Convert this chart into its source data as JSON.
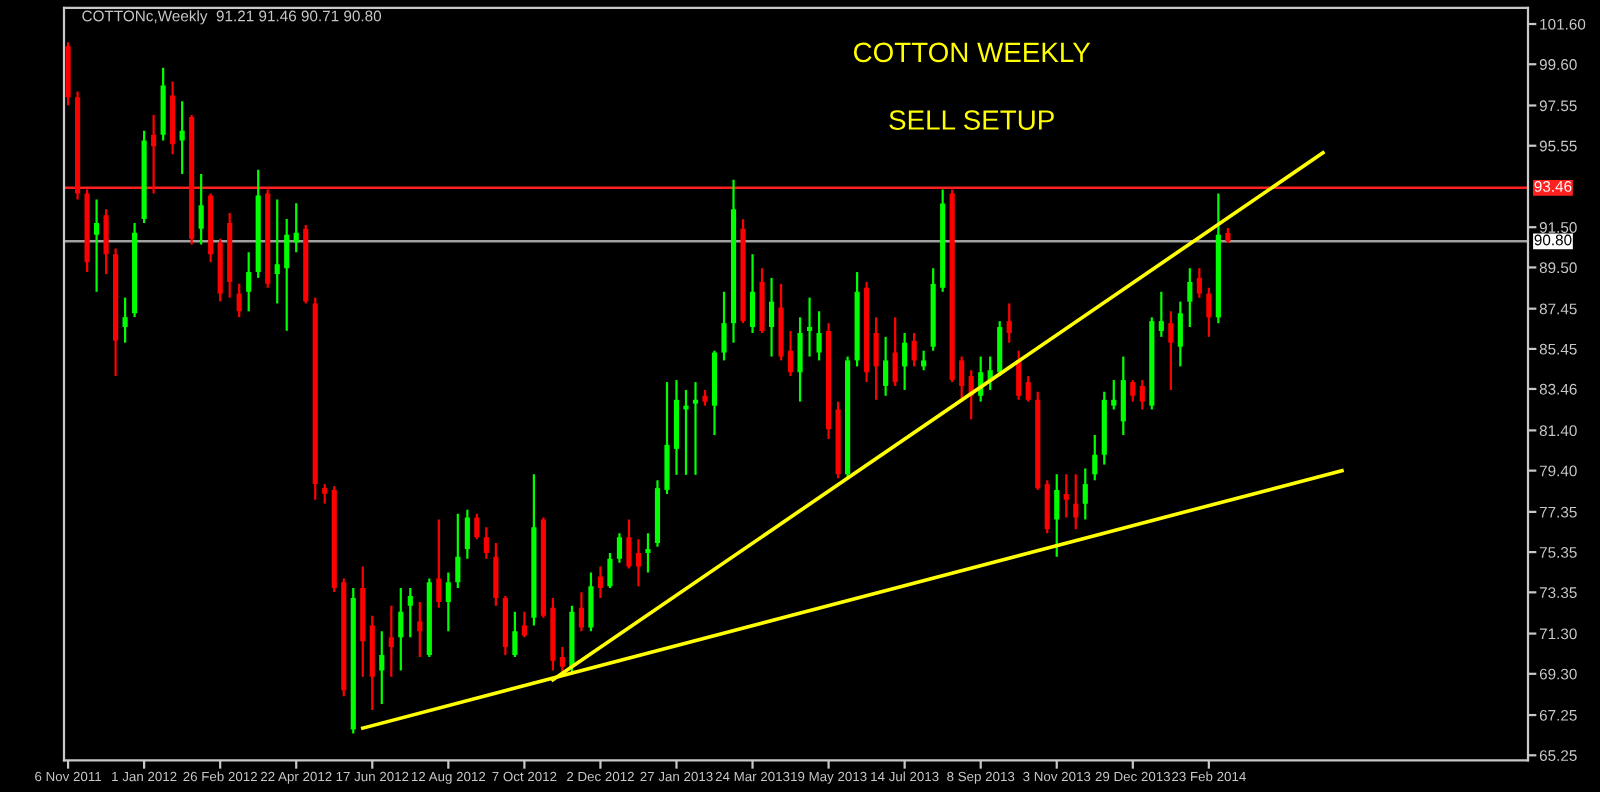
{
  "chart_data": {
    "type": "candlestick",
    "title": "COTTON WEEKLY",
    "subtitle": "SELL SETUP",
    "annotations": [
      "COTTONc,Weekly  91.21 91.46 90.71 90.80"
    ],
    "x": [
      "2011-11-06",
      "2011-11-13",
      "2011-11-20",
      "2011-11-27",
      "2011-12-04",
      "2011-12-11",
      "2011-12-18",
      "2011-12-25",
      "2012-01-01",
      "2012-01-08",
      "2012-01-15",
      "2012-01-22",
      "2012-01-29",
      "2012-02-05",
      "2012-02-12",
      "2012-02-19",
      "2012-02-26",
      "2012-03-04",
      "2012-03-11",
      "2012-03-18",
      "2012-03-25",
      "2012-04-01",
      "2012-04-08",
      "2012-04-15",
      "2012-04-22",
      "2012-04-29",
      "2012-05-06",
      "2012-05-13",
      "2012-05-20",
      "2012-05-27",
      "2012-06-03",
      "2012-06-10",
      "2012-06-17",
      "2012-06-24",
      "2012-07-01",
      "2012-07-08",
      "2012-07-15",
      "2012-07-22",
      "2012-07-29",
      "2012-08-05",
      "2012-08-12",
      "2012-08-19",
      "2012-08-26",
      "2012-09-02",
      "2012-09-09",
      "2012-09-16",
      "2012-09-23",
      "2012-09-30",
      "2012-10-07",
      "2012-10-14",
      "2012-10-21",
      "2012-10-28",
      "2012-11-04",
      "2012-11-11",
      "2012-11-18",
      "2012-11-25",
      "2012-12-02",
      "2012-12-09",
      "2012-12-16",
      "2012-12-23",
      "2012-12-30",
      "2013-01-06",
      "2013-01-13",
      "2013-01-20",
      "2013-01-27",
      "2013-02-03",
      "2013-02-10",
      "2013-02-17",
      "2013-02-24",
      "2013-03-03",
      "2013-03-10",
      "2013-03-17",
      "2013-03-24",
      "2013-03-31",
      "2013-04-07",
      "2013-04-14",
      "2013-04-21",
      "2013-04-28",
      "2013-05-05",
      "2013-05-12",
      "2013-05-19",
      "2013-05-26",
      "2013-06-02",
      "2013-06-09",
      "2013-06-16",
      "2013-06-23",
      "2013-06-30",
      "2013-07-07",
      "2013-07-14",
      "2013-07-21",
      "2013-07-28",
      "2013-08-04",
      "2013-08-11",
      "2013-08-18",
      "2013-08-25",
      "2013-09-01",
      "2013-09-08",
      "2013-09-15",
      "2013-09-22",
      "2013-09-29",
      "2013-10-06",
      "2013-10-13",
      "2013-10-20",
      "2013-10-27",
      "2013-11-03",
      "2013-11-10",
      "2013-11-17",
      "2013-11-24",
      "2013-12-01",
      "2013-12-08",
      "2013-12-15",
      "2013-12-22",
      "2013-12-29",
      "2014-01-05",
      "2014-01-12",
      "2014-01-19",
      "2014-01-26",
      "2014-02-02",
      "2014-02-09",
      "2014-02-16",
      "2014-02-23",
      "2014-03-02",
      "2014-03-09"
    ],
    "ohlc": [
      [
        100.49,
        100.69,
        97.56,
        97.96
      ],
      [
        97.96,
        98.25,
        92.88,
        93.17
      ],
      [
        93.17,
        93.37,
        89.27,
        89.76
      ],
      [
        91.12,
        92.88,
        88.29,
        91.71
      ],
      [
        92.1,
        92.39,
        89.17,
        90.15
      ],
      [
        90.15,
        90.44,
        84.1,
        85.86
      ],
      [
        86.54,
        88.0,
        85.76,
        87.03
      ],
      [
        87.22,
        91.71,
        87.03,
        91.22
      ],
      [
        91.91,
        96.3,
        91.71,
        95.81
      ],
      [
        96.1,
        97.08,
        93.17,
        95.52
      ],
      [
        96.1,
        99.42,
        95.81,
        98.54
      ],
      [
        98.05,
        98.74,
        95.13,
        95.62
      ],
      [
        95.81,
        97.76,
        94.15,
        96.3
      ],
      [
        96.98,
        97.08,
        90.64,
        90.93
      ],
      [
        91.42,
        94.15,
        90.64,
        92.59
      ],
      [
        93.08,
        93.17,
        89.76,
        90.15
      ],
      [
        90.74,
        90.93,
        87.81,
        88.2
      ],
      [
        91.71,
        92.2,
        88.0,
        88.78
      ],
      [
        88.2,
        88.69,
        87.03,
        87.32
      ],
      [
        88.29,
        90.25,
        87.32,
        89.27
      ],
      [
        89.27,
        94.35,
        88.98,
        93.08
      ],
      [
        93.17,
        93.37,
        88.49,
        88.69
      ],
      [
        89.17,
        92.88,
        87.71,
        89.66
      ],
      [
        89.46,
        91.91,
        86.35,
        91.12
      ],
      [
        90.74,
        92.69,
        90.25,
        91.22
      ],
      [
        91.42,
        91.61,
        87.71,
        87.81
      ],
      [
        87.71,
        88.0,
        77.95,
        78.73
      ],
      [
        78.54,
        78.73,
        77.76,
        78.25
      ],
      [
        78.44,
        78.63,
        73.37,
        73.56
      ],
      [
        73.85,
        74.04,
        68.19,
        68.48
      ],
      [
        66.53,
        73.56,
        66.33,
        73.07
      ],
      [
        73.56,
        74.63,
        69.16,
        70.92
      ],
      [
        71.7,
        72.19,
        67.5,
        69.16
      ],
      [
        69.46,
        71.41,
        67.8,
        70.24
      ],
      [
        71.12,
        72.68,
        69.16,
        70.63
      ],
      [
        71.12,
        73.56,
        69.46,
        72.39
      ],
      [
        72.68,
        73.56,
        71.12,
        73.17
      ],
      [
        71.9,
        72.87,
        70.14,
        71.41
      ],
      [
        70.24,
        74.04,
        70.14,
        73.85
      ],
      [
        74.04,
        76.97,
        72.58,
        72.87
      ],
      [
        72.87,
        74.34,
        71.41,
        73.85
      ],
      [
        73.85,
        77.26,
        73.56,
        75.12
      ],
      [
        75.51,
        77.46,
        75.02,
        77.07
      ],
      [
        77.07,
        77.26,
        75.99,
        76.09
      ],
      [
        76.09,
        76.58,
        75.02,
        75.31
      ],
      [
        75.12,
        75.8,
        72.68,
        73.07
      ],
      [
        73.07,
        73.17,
        70.24,
        70.63
      ],
      [
        70.24,
        72.39,
        70.14,
        71.41
      ],
      [
        71.7,
        72.39,
        71.12,
        71.21
      ],
      [
        72.09,
        79.22,
        71.7,
        76.58
      ],
      [
        76.97,
        77.07,
        72.09,
        72.19
      ],
      [
        72.58,
        73.07,
        69.46,
        69.95
      ],
      [
        70.14,
        70.63,
        69.26,
        69.65
      ],
      [
        69.65,
        72.68,
        69.26,
        72.39
      ],
      [
        72.58,
        73.36,
        71.41,
        71.6
      ],
      [
        71.6,
        74.34,
        71.41,
        73.65
      ],
      [
        74.14,
        74.63,
        73.07,
        73.56
      ],
      [
        73.65,
        75.31,
        73.56,
        75.02
      ],
      [
        75.02,
        76.29,
        74.82,
        76.09
      ],
      [
        76.09,
        76.97,
        74.53,
        74.63
      ],
      [
        75.31,
        75.99,
        73.65,
        74.63
      ],
      [
        75.31,
        76.29,
        74.34,
        75.51
      ],
      [
        75.8,
        78.92,
        75.61,
        78.53
      ],
      [
        78.44,
        83.8,
        78.24,
        80.68
      ],
      [
        80.48,
        83.9,
        79.19,
        82.92
      ],
      [
        82.44,
        83.41,
        79.19,
        82.63
      ],
      [
        82.73,
        83.8,
        79.19,
        82.92
      ],
      [
        83.12,
        83.41,
        82.63,
        82.83
      ],
      [
        82.63,
        85.36,
        81.17,
        85.27
      ],
      [
        85.27,
        88.29,
        84.88,
        86.73
      ],
      [
        86.73,
        93.86,
        85.76,
        92.39
      ],
      [
        91.42,
        91.9,
        86.73,
        86.83
      ],
      [
        86.54,
        90.15,
        86.24,
        88.29
      ],
      [
        88.78,
        89.46,
        86.24,
        86.34
      ],
      [
        86.54,
        88.98,
        85.07,
        87.8
      ],
      [
        87.51,
        88.68,
        84.88,
        85.07
      ],
      [
        85.36,
        86.34,
        84.1,
        84.29
      ],
      [
        84.29,
        87.02,
        82.83,
        86.24
      ],
      [
        86.34,
        88.0,
        85.07,
        86.54
      ],
      [
        85.27,
        87.32,
        84.88,
        86.24
      ],
      [
        86.34,
        86.73,
        80.97,
        81.46
      ],
      [
        82.44,
        82.83,
        79.02,
        79.22
      ],
      [
        79.22,
        85.07,
        79.02,
        84.88
      ],
      [
        84.88,
        89.27,
        84.58,
        88.29
      ],
      [
        88.49,
        88.78,
        83.8,
        84.29
      ],
      [
        86.24,
        87.02,
        82.92,
        84.58
      ],
      [
        83.61,
        86.05,
        83.12,
        84.88
      ],
      [
        85.27,
        87.02,
        83.61,
        83.8
      ],
      [
        84.58,
        86.24,
        83.41,
        85.76
      ],
      [
        85.85,
        86.24,
        84.58,
        84.88
      ],
      [
        84.58,
        85.36,
        84.39,
        84.88
      ],
      [
        85.56,
        89.46,
        85.36,
        88.68
      ],
      [
        88.49,
        93.37,
        88.29,
        92.68
      ],
      [
        93.17,
        93.37,
        83.8,
        83.9
      ],
      [
        84.88,
        85.07,
        82.83,
        83.61
      ],
      [
        84.1,
        84.39,
        81.95,
        83.12
      ],
      [
        83.12,
        85.07,
        82.83,
        84.29
      ],
      [
        83.9,
        85.07,
        83.41,
        84.39
      ],
      [
        84.29,
        86.83,
        84.1,
        86.54
      ],
      [
        86.83,
        87.71,
        85.76,
        86.24
      ],
      [
        84.88,
        85.36,
        82.92,
        83.12
      ],
      [
        83.8,
        84.1,
        82.83,
        82.92
      ],
      [
        82.92,
        83.32,
        78.44,
        78.53
      ],
      [
        78.73,
        78.92,
        76.29,
        76.48
      ],
      [
        76.97,
        79.22,
        75.12,
        78.44
      ],
      [
        78.24,
        79.22,
        77.07,
        77.95
      ],
      [
        77.75,
        79.22,
        76.48,
        77.07
      ],
      [
        77.75,
        79.51,
        76.97,
        78.73
      ],
      [
        79.22,
        81.17,
        78.92,
        80.19
      ],
      [
        80.19,
        83.32,
        79.7,
        82.92
      ],
      [
        82.63,
        83.9,
        82.44,
        82.92
      ],
      [
        81.85,
        85.07,
        81.17,
        83.9
      ],
      [
        83.8,
        83.9,
        82.83,
        83.12
      ],
      [
        83.61,
        83.9,
        82.44,
        82.83
      ],
      [
        82.63,
        87.02,
        82.44,
        86.83
      ],
      [
        86.34,
        88.29,
        86.05,
        86.83
      ],
      [
        86.73,
        87.32,
        83.41,
        85.76
      ],
      [
        85.56,
        87.8,
        84.58,
        87.22
      ],
      [
        87.8,
        89.46,
        86.54,
        88.78
      ],
      [
        88.98,
        89.46,
        87.99,
        88.2
      ],
      [
        88.2,
        88.49,
        86.05,
        87.02
      ],
      [
        87.02,
        93.17,
        86.73,
        91.12
      ],
      [
        91.21,
        91.46,
        90.71,
        90.8
      ]
    ],
    "colors": [
      "#ff0000",
      "#ff0000",
      "#ff0000",
      "#00ff00",
      "#ff0000",
      "#ff0000",
      "#00ff00",
      "#00ff00",
      "#00ff00",
      "#ff0000",
      "#00ff00",
      "#ff0000",
      "#00ff00",
      "#ff0000",
      "#00ff00",
      "#ff0000",
      "#ff0000",
      "#ff0000",
      "#ff0000",
      "#00ff00",
      "#00ff00",
      "#ff0000",
      "#00ff00",
      "#00ff00",
      "#00ff00",
      "#ff0000",
      "#ff0000",
      "#ff0000",
      "#ff0000",
      "#ff0000",
      "#00ff00",
      "#ff0000",
      "#ff0000",
      "#00ff00",
      "#ff0000",
      "#00ff00",
      "#00ff00",
      "#ff0000",
      "#00ff00",
      "#ff0000",
      "#00ff00",
      "#00ff00",
      "#00ff00",
      "#ff0000",
      "#ff0000",
      "#ff0000",
      "#ff0000",
      "#00ff00",
      "#ff0000",
      "#00ff00",
      "#ff0000",
      "#ff0000",
      "#ff0000",
      "#00ff00",
      "#ff0000",
      "#00ff00",
      "#ff0000",
      "#00ff00",
      "#00ff00",
      "#ff0000",
      "#ff0000",
      "#00ff00",
      "#00ff00",
      "#00ff00",
      "#00ff00",
      "#00ff00",
      "#00ff00",
      "#ff0000",
      "#00ff00",
      "#00ff00",
      "#00ff00",
      "#ff0000",
      "#00ff00",
      "#ff0000",
      "#00ff00",
      "#ff0000",
      "#ff0000",
      "#00ff00",
      "#00ff00",
      "#00ff00",
      "#ff0000",
      "#ff0000",
      "#00ff00",
      "#00ff00",
      "#ff0000",
      "#ff0000",
      "#00ff00",
      "#ff0000",
      "#00ff00",
      "#ff0000",
      "#00ff00",
      "#00ff00",
      "#00ff00",
      "#ff0000",
      "#ff0000",
      "#ff0000",
      "#00ff00",
      "#00ff00",
      "#00ff00",
      "#ff0000",
      "#ff0000",
      "#ff0000",
      "#ff0000",
      "#ff0000",
      "#00ff00",
      "#ff0000",
      "#ff0000",
      "#00ff00",
      "#00ff00",
      "#00ff00",
      "#00ff00",
      "#00ff00",
      "#ff0000",
      "#ff0000",
      "#00ff00",
      "#00ff00",
      "#ff0000",
      "#00ff00",
      "#00ff00",
      "#ff0000",
      "#ff0000",
      "#00ff00",
      "#ff0000"
    ],
    "series": [
      {
        "type": "line",
        "color": "#ffff00",
        "x": [
          "2012-06-10",
          "2014-06-01"
        ],
        "values": [
          66.6,
          79.4
        ]
      },
      {
        "type": "line",
        "color": "#ffff00",
        "x": [
          "2012-10-28",
          "2014-05-18"
        ],
        "values": [
          69.0,
          95.2
        ]
      }
    ],
    "xlim": [
      "2011-11-03",
      "2014-10-16"
    ],
    "xticks": [
      {
        "value": "2011-11-06",
        "label": "6 Nov 2011"
      },
      {
        "value": "2012-01-01",
        "label": "1 Jan 2012"
      },
      {
        "value": "2012-02-26",
        "label": "26 Feb 2012"
      },
      {
        "value": "2012-04-22",
        "label": "22 Apr 2012"
      },
      {
        "value": "2012-06-17",
        "label": "17 Jun 2012"
      },
      {
        "value": "2012-08-12",
        "label": "12 Aug 2012"
      },
      {
        "value": "2012-10-07",
        "label": "7 Oct 2012"
      },
      {
        "value": "2012-12-02",
        "label": "2 Dec 2012"
      },
      {
        "value": "2013-01-27",
        "label": "27 Jan 2013"
      },
      {
        "value": "2013-03-24",
        "label": "24 Mar 2013"
      },
      {
        "value": "2013-05-19",
        "label": "19 May 2013"
      },
      {
        "value": "2013-07-14",
        "label": "14 Jul 2013"
      },
      {
        "value": "2013-09-08",
        "label": "8 Sep 2013"
      },
      {
        "value": "2013-11-03",
        "label": "3 Nov 2013"
      },
      {
        "value": "2013-12-29",
        "label": "29 Dec 2013"
      },
      {
        "value": "2014-02-23",
        "label": "23 Feb 2014"
      }
    ],
    "ylim": [
      65.0,
      102.4
    ],
    "yticks": [
      {
        "value": 101.6,
        "label": "101.60"
      },
      {
        "value": 99.6,
        "label": "99.60"
      },
      {
        "value": 97.55,
        "label": "97.55"
      },
      {
        "value": 95.55,
        "label": "95.55"
      },
      {
        "value": 91.5,
        "label": "91.50"
      },
      {
        "value": 89.5,
        "label": "89.50"
      },
      {
        "value": 87.45,
        "label": "87.45"
      },
      {
        "value": 85.45,
        "label": "85.45"
      },
      {
        "value": 83.46,
        "label": "83.46"
      },
      {
        "value": 81.4,
        "label": "81.40"
      },
      {
        "value": 79.4,
        "label": "79.40"
      },
      {
        "value": 77.35,
        "label": "77.35"
      },
      {
        "value": 75.35,
        "label": "75.35"
      },
      {
        "value": 73.35,
        "label": "73.35"
      },
      {
        "value": 71.3,
        "label": "71.30"
      },
      {
        "value": 69.3,
        "label": "69.30"
      },
      {
        "value": 67.25,
        "label": "67.25"
      },
      {
        "value": 65.25,
        "label": "65.25"
      }
    ],
    "ref_lines": [
      {
        "axis": "y",
        "value": 93.46,
        "label": "93.46",
        "color": "#ff2020"
      },
      {
        "axis": "y",
        "value": 90.8,
        "label": "90.80",
        "color": "#a0a0a0"
      }
    ],
    "grid": false,
    "legend": false
  }
}
